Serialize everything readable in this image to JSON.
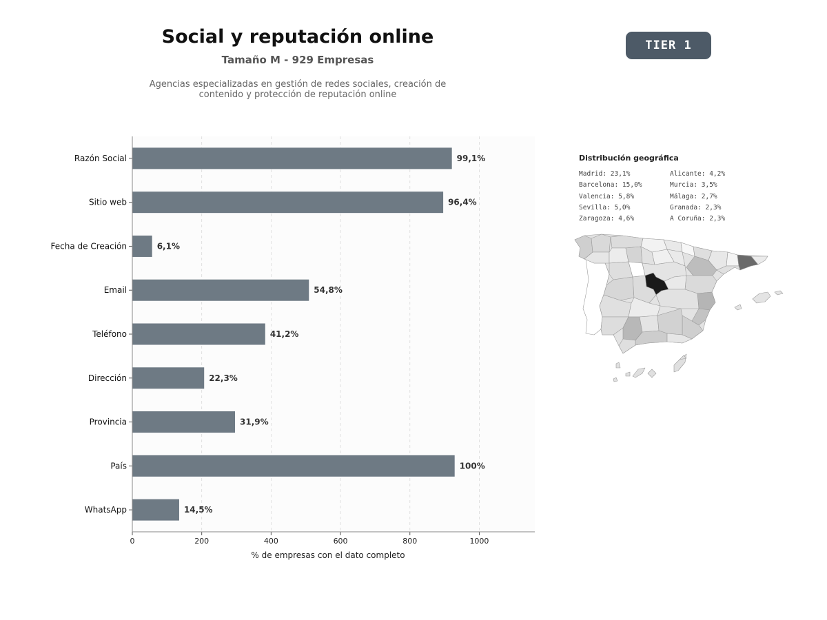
{
  "header": {
    "title": "Social y reputación online",
    "subtitle": "Tamaño M - 929 Empresas",
    "description_line1": "Agencias especializadas en gestión de redes sociales, creación de",
    "description_line2": "contenido y protección de reputación online",
    "tier_badge": "TIER 1"
  },
  "chart_data": {
    "type": "bar",
    "orientation": "horizontal",
    "categories": [
      "Razón Social",
      "Sitio web",
      "Fecha de Creación",
      "Email",
      "Teléfono",
      "Dirección",
      "Provincia",
      "País",
      "WhatsApp"
    ],
    "values": [
      921,
      896,
      57,
      509,
      383,
      207,
      296,
      929,
      135
    ],
    "value_labels": [
      "99,1%",
      "96,4%",
      "6,1%",
      "54,8%",
      "41,2%",
      "22,3%",
      "31,9%",
      "100%",
      "14,5%"
    ],
    "xlabel": "% de empresas con el dato completo",
    "ylabel": "",
    "xlim": [
      0,
      1160
    ],
    "xticks": [
      0,
      200,
      400,
      600,
      800,
      1000
    ],
    "grid": "vertical dashed",
    "bar_color": "#6e7a84"
  },
  "geo": {
    "title": "Distribución geográfica",
    "left_column": [
      "Madrid: 23,1%",
      "Barcelona: 15,0%",
      "Valencia: 5,8%",
      "Sevilla: 5,0%",
      "Zaragoza: 4,6%"
    ],
    "right_column": [
      "Alicante: 4,2%",
      "Murcia: 3,5%",
      "Málaga: 2,7%",
      "Granada: 2,3%",
      "A Coruña: 2,3%"
    ]
  }
}
